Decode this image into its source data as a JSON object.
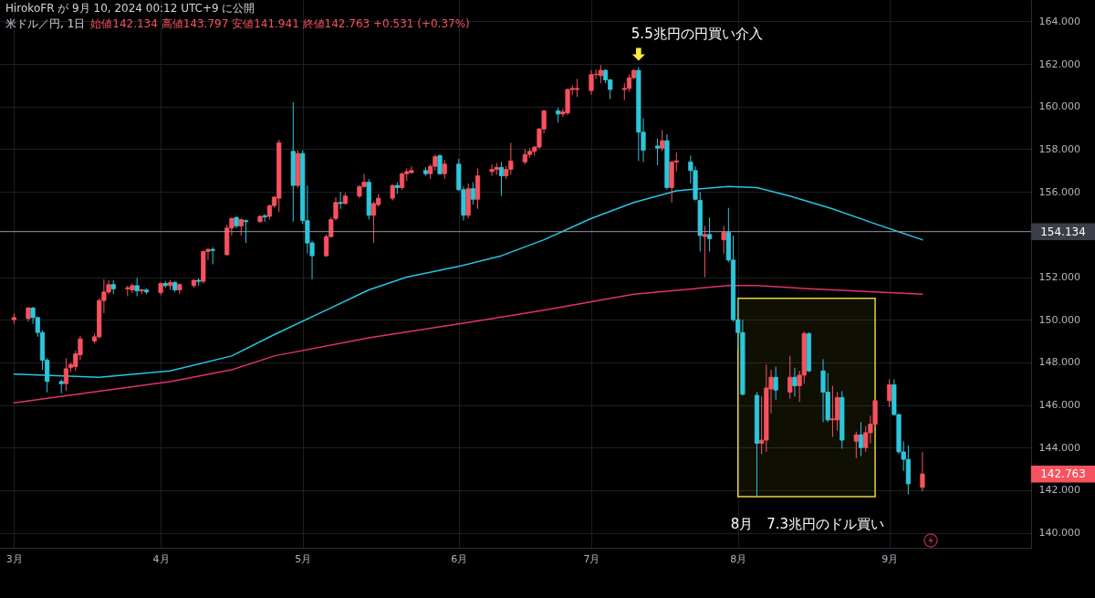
{
  "chart_data": {
    "type": "candlestick",
    "title": "米ドル／円, 1日",
    "subtitle": "始値142.134 高値143.797 安値141.941 終値142.763 +0.531 (+0.37%)",
    "annotations": [
      "HirokoFR が 9月 10, 2024 00:12 UTC+9 に公開",
      {
        "text": "5.5兆円の円買い介入",
        "x": "2024-07-11",
        "y": 161.85
      },
      "142.763"
    ],
    "xlim": [
      "2024-02-28",
      "2024-10-01"
    ],
    "x": [
      "2024-03-01",
      "2024-03-04",
      "2024-03-05",
      "2024-03-06",
      "2024-03-07",
      "2024-03-08",
      "2024-03-11",
      "2024-03-12",
      "2024-03-13",
      "2024-03-14",
      "2024-03-15",
      "2024-03-18",
      "2024-03-19",
      "2024-03-20",
      "2024-03-21",
      "2024-03-22",
      "2024-03-25",
      "2024-03-26",
      "2024-03-27",
      "2024-03-28",
      "2024-03-29",
      "2024-04-01",
      "2024-04-02",
      "2024-04-03",
      "2024-04-04",
      "2024-04-05",
      "2024-04-08",
      "2024-04-09",
      "2024-04-10",
      "2024-04-11",
      "2024-04-12",
      "2024-04-15",
      "2024-04-16",
      "2024-04-17",
      "2024-04-18",
      "2024-04-19",
      "2024-04-22",
      "2024-04-23",
      "2024-04-24",
      "2024-04-25",
      "2024-04-26",
      "2024-04-29",
      "2024-04-30",
      "2024-05-01",
      "2024-05-02",
      "2024-05-03",
      "2024-05-06",
      "2024-05-07",
      "2024-05-08",
      "2024-05-09",
      "2024-05-10",
      "2024-05-13",
      "2024-05-14",
      "2024-05-15",
      "2024-05-16",
      "2024-05-17",
      "2024-05-20",
      "2024-05-21",
      "2024-05-22",
      "2024-05-23",
      "2024-05-24",
      "2024-05-27",
      "2024-05-28",
      "2024-05-29",
      "2024-05-30",
      "2024-05-31",
      "2024-06-03",
      "2024-06-04",
      "2024-06-05",
      "2024-06-06",
      "2024-06-07",
      "2024-06-10",
      "2024-06-11",
      "2024-06-12",
      "2024-06-13",
      "2024-06-14",
      "2024-06-17",
      "2024-06-18",
      "2024-06-19",
      "2024-06-20",
      "2024-06-21",
      "2024-06-24",
      "2024-06-25",
      "2024-06-26",
      "2024-06-27",
      "2024-06-28",
      "2024-07-01",
      "2024-07-02",
      "2024-07-03",
      "2024-07-04",
      "2024-07-05",
      "2024-07-08",
      "2024-07-09",
      "2024-07-10",
      "2024-07-11",
      "2024-07-12",
      "2024-07-15",
      "2024-07-16",
      "2024-07-17",
      "2024-07-18",
      "2024-07-19",
      "2024-07-22",
      "2024-07-23",
      "2024-07-24",
      "2024-07-25",
      "2024-07-26",
      "2024-07-29",
      "2024-07-30",
      "2024-07-31",
      "2024-08-01",
      "2024-08-02",
      "2024-08-05",
      "2024-08-06",
      "2024-08-07",
      "2024-08-08",
      "2024-08-09",
      "2024-08-12",
      "2024-08-13",
      "2024-08-14",
      "2024-08-15",
      "2024-08-16",
      "2024-08-19",
      "2024-08-20",
      "2024-08-21",
      "2024-08-22",
      "2024-08-23",
      "2024-08-26",
      "2024-08-27",
      "2024-08-28",
      "2024-08-29",
      "2024-08-30",
      "2024-09-02",
      "2024-09-03",
      "2024-09-04",
      "2024-09-05",
      "2024-09-06",
      "2024-09-09"
    ],
    "ohlc": [
      [
        150.0,
        150.3,
        149.8,
        150.1
      ],
      [
        150.05,
        150.6,
        149.9,
        150.55
      ],
      [
        150.55,
        150.6,
        149.8,
        150.1
      ],
      [
        150.1,
        150.15,
        149.2,
        149.4
      ],
      [
        149.4,
        149.5,
        147.65,
        148.1
      ],
      [
        148.1,
        148.2,
        146.6,
        147.1
      ],
      [
        147.1,
        147.2,
        146.55,
        147.0
      ],
      [
        147.0,
        148.2,
        146.65,
        147.7
      ],
      [
        147.75,
        148.0,
        147.55,
        147.9
      ],
      [
        147.8,
        148.55,
        147.6,
        148.4
      ],
      [
        148.35,
        149.25,
        148.1,
        149.1
      ],
      [
        149.0,
        149.35,
        148.9,
        149.2
      ],
      [
        149.2,
        151.0,
        149.1,
        150.9
      ],
      [
        150.9,
        151.9,
        150.3,
        151.3
      ],
      [
        151.3,
        151.85,
        151.2,
        151.65
      ],
      [
        151.65,
        151.85,
        151.2,
        151.45
      ],
      [
        151.45,
        151.6,
        151.1,
        151.5
      ],
      [
        151.4,
        151.7,
        151.25,
        151.6
      ],
      [
        151.6,
        151.97,
        151.1,
        151.35
      ],
      [
        151.35,
        151.45,
        151.2,
        151.4
      ],
      [
        151.4,
        151.45,
        151.2,
        151.3
      ],
      [
        151.27,
        151.75,
        151.15,
        151.7
      ],
      [
        151.7,
        151.8,
        151.5,
        151.6
      ],
      [
        151.6,
        151.85,
        151.4,
        151.75
      ],
      [
        151.75,
        151.8,
        151.3,
        151.4
      ],
      [
        151.4,
        151.7,
        151.2,
        151.65
      ],
      [
        151.6,
        151.9,
        151.5,
        151.85
      ],
      [
        151.85,
        151.95,
        151.6,
        151.8
      ],
      [
        151.8,
        153.25,
        151.7,
        153.2
      ],
      [
        153.2,
        153.35,
        152.8,
        153.3
      ],
      [
        153.3,
        153.4,
        152.6,
        153.25
      ],
      [
        153.05,
        154.45,
        153.0,
        154.3
      ],
      [
        154.3,
        154.8,
        153.95,
        154.75
      ],
      [
        154.8,
        154.85,
        154.3,
        154.4
      ],
      [
        154.4,
        154.75,
        153.95,
        154.7
      ],
      [
        154.65,
        154.7,
        153.6,
        154.6
      ],
      [
        154.6,
        154.9,
        154.55,
        154.85
      ],
      [
        154.88,
        154.95,
        154.6,
        154.82
      ],
      [
        154.85,
        155.4,
        154.7,
        155.35
      ],
      [
        155.35,
        155.8,
        155.25,
        155.75
      ],
      [
        155.7,
        158.45,
        155.05,
        158.3
      ],
      [
        157.9,
        160.2,
        154.6,
        156.3
      ],
      [
        156.3,
        157.95,
        156.2,
        157.8
      ],
      [
        157.8,
        157.95,
        154.5,
        154.65
      ],
      [
        154.65,
        156.3,
        153.1,
        153.6
      ],
      [
        153.6,
        153.7,
        151.9,
        153.0
      ],
      [
        153.0,
        154.0,
        152.95,
        153.9
      ],
      [
        153.9,
        154.8,
        153.85,
        154.7
      ],
      [
        154.75,
        155.75,
        154.65,
        155.5
      ],
      [
        155.5,
        156.0,
        155.2,
        155.45
      ],
      [
        155.45,
        155.95,
        155.4,
        155.8
      ],
      [
        155.8,
        156.3,
        155.7,
        156.25
      ],
      [
        156.25,
        156.85,
        156.2,
        156.45
      ],
      [
        156.45,
        156.6,
        154.7,
        154.9
      ],
      [
        154.9,
        155.55,
        153.6,
        155.45
      ],
      [
        155.4,
        155.9,
        155.3,
        155.7
      ],
      [
        155.7,
        156.35,
        155.6,
        156.3
      ],
      [
        156.3,
        156.45,
        155.9,
        156.2
      ],
      [
        156.2,
        156.9,
        156.1,
        156.85
      ],
      [
        156.85,
        157.1,
        156.5,
        156.95
      ],
      [
        156.9,
        157.2,
        156.85,
        157.0
      ],
      [
        157.0,
        157.15,
        156.75,
        156.85
      ],
      [
        156.85,
        157.3,
        156.6,
        157.2
      ],
      [
        157.2,
        157.75,
        157.0,
        157.65
      ],
      [
        157.7,
        157.75,
        156.8,
        156.85
      ],
      [
        156.85,
        157.5,
        156.6,
        157.3
      ],
      [
        157.3,
        157.55,
        156.05,
        156.1
      ],
      [
        156.1,
        156.25,
        154.65,
        154.9
      ],
      [
        154.9,
        156.4,
        154.75,
        156.15
      ],
      [
        156.15,
        156.45,
        155.4,
        155.65
      ],
      [
        155.65,
        157.1,
        155.2,
        156.75
      ],
      [
        156.95,
        157.3,
        156.75,
        157.05
      ],
      [
        157.05,
        157.35,
        156.8,
        157.15
      ],
      [
        157.15,
        157.4,
        155.8,
        156.75
      ],
      [
        156.75,
        157.2,
        156.6,
        157.05
      ],
      [
        157.05,
        158.3,
        156.8,
        157.45
      ],
      [
        157.4,
        158.0,
        157.3,
        157.75
      ],
      [
        157.75,
        158.05,
        157.6,
        157.9
      ],
      [
        157.9,
        158.15,
        157.7,
        158.1
      ],
      [
        158.1,
        159.0,
        158.0,
        158.95
      ],
      [
        158.95,
        159.85,
        158.75,
        159.8
      ],
      [
        159.8,
        159.95,
        159.25,
        159.65
      ],
      [
        159.65,
        159.9,
        159.5,
        159.75
      ],
      [
        159.7,
        160.85,
        159.6,
        160.8
      ],
      [
        160.8,
        161.0,
        160.55,
        160.85
      ],
      [
        160.8,
        161.3,
        160.45,
        160.85
      ],
      [
        160.75,
        161.7,
        160.55,
        161.5
      ],
      [
        161.5,
        161.75,
        161.3,
        161.52
      ],
      [
        161.45,
        161.95,
        161.1,
        161.7
      ],
      [
        161.7,
        161.75,
        161.1,
        161.25
      ],
      [
        161.25,
        161.3,
        160.35,
        160.8
      ],
      [
        160.8,
        161.1,
        160.3,
        160.85
      ],
      [
        160.85,
        161.5,
        160.7,
        161.35
      ],
      [
        161.35,
        161.75,
        161.3,
        161.7
      ],
      [
        161.7,
        161.85,
        157.45,
        158.8
      ],
      [
        158.8,
        159.45,
        157.4,
        157.95
      ],
      [
        158.15,
        158.5,
        157.25,
        158.05
      ],
      [
        158.05,
        158.9,
        157.9,
        158.4
      ],
      [
        158.4,
        158.7,
        156.1,
        156.2
      ],
      [
        156.2,
        157.45,
        155.5,
        157.4
      ],
      [
        157.4,
        157.85,
        156.95,
        157.45
      ],
      [
        157.4,
        157.7,
        156.4,
        157.0
      ],
      [
        157.0,
        157.2,
        155.6,
        155.65
      ],
      [
        155.6,
        156.0,
        153.2,
        153.95
      ],
      [
        153.9,
        154.4,
        152.0,
        154.0
      ],
      [
        154.0,
        154.8,
        153.2,
        153.8
      ],
      [
        153.75,
        154.4,
        153.1,
        154.1
      ],
      [
        154.1,
        155.25,
        152.7,
        152.8
      ],
      [
        152.8,
        153.95,
        149.9,
        150.0
      ],
      [
        150.0,
        151.0,
        148.6,
        149.4
      ],
      [
        149.4,
        150.0,
        146.45,
        146.5
      ],
      [
        146.45,
        146.6,
        141.7,
        144.2
      ],
      [
        144.2,
        146.4,
        143.7,
        144.35
      ],
      [
        144.35,
        147.9,
        143.8,
        146.8
      ],
      [
        146.75,
        147.65,
        145.6,
        147.3
      ],
      [
        147.3,
        147.8,
        146.25,
        146.7
      ],
      [
        146.6,
        148.3,
        146.3,
        147.3
      ],
      [
        147.3,
        147.75,
        146.4,
        146.9
      ],
      [
        146.9,
        147.6,
        146.15,
        147.4
      ],
      [
        147.4,
        149.45,
        147.0,
        149.35
      ],
      [
        149.35,
        149.4,
        147.55,
        147.6
      ],
      [
        147.6,
        148.15,
        145.2,
        146.6
      ],
      [
        146.6,
        147.5,
        145.2,
        145.3
      ],
      [
        145.3,
        146.9,
        144.5,
        145.35
      ],
      [
        145.3,
        146.6,
        144.8,
        146.35
      ],
      [
        146.35,
        146.65,
        143.95,
        144.35
      ],
      [
        144.3,
        144.75,
        143.5,
        144.6
      ],
      [
        144.6,
        145.2,
        143.6,
        144.0
      ],
      [
        144.0,
        145.0,
        143.8,
        144.7
      ],
      [
        144.7,
        145.5,
        144.2,
        145.1
      ],
      [
        145.1,
        146.25,
        145.0,
        146.2
      ],
      [
        146.2,
        147.2,
        145.9,
        146.95
      ],
      [
        146.95,
        147.2,
        145.5,
        145.55
      ],
      [
        145.55,
        145.6,
        143.7,
        143.8
      ],
      [
        143.8,
        144.3,
        142.9,
        143.45
      ],
      [
        143.45,
        144.1,
        141.8,
        142.3
      ],
      [
        142.134,
        143.797,
        141.941,
        142.763
      ]
    ],
    "colors": [
      "#f7525f",
      "#f7525f",
      "#2ec6da",
      "#2ec6da",
      "#2ec6da",
      "#2ec6da",
      "#2ec6da",
      "#f7525f",
      "#f7525f",
      "#f7525f",
      "#f7525f",
      "#f7525f",
      "#f7525f",
      "#f7525f",
      "#f7525f",
      "#2ec6da",
      "#f7525f",
      "#f7525f",
      "#2ec6da",
      "#f7525f",
      "#2ec6da",
      "#f7525f",
      "#2ec6da",
      "#f7525f",
      "#2ec6da",
      "#f7525f",
      "#f7525f",
      "#2ec6da",
      "#f7525f",
      "#f7525f",
      "#2ec6da",
      "#f7525f",
      "#f7525f",
      "#2ec6da",
      "#f7525f",
      "#2ec6da",
      "#f7525f",
      "#2ec6da",
      "#f7525f",
      "#f7525f",
      "#f7525f",
      "#2ec6da",
      "#f7525f",
      "#2ec6da",
      "#2ec6da",
      "#2ec6da",
      "#f7525f",
      "#f7525f",
      "#f7525f",
      "#2ec6da",
      "#f7525f",
      "#f7525f",
      "#f7525f",
      "#2ec6da",
      "#f7525f",
      "#f7525f",
      "#f7525f",
      "#2ec6da",
      "#f7525f",
      "#f7525f",
      "#f7525f",
      "#2ec6da",
      "#f7525f",
      "#f7525f",
      "#2ec6da",
      "#f7525f",
      "#2ec6da",
      "#2ec6da",
      "#f7525f",
      "#2ec6da",
      "#f7525f",
      "#f7525f",
      "#f7525f",
      "#2ec6da",
      "#f7525f",
      "#f7525f",
      "#f7525f",
      "#f7525f",
      "#f7525f",
      "#f7525f",
      "#f7525f",
      "#2ec6da",
      "#f7525f",
      "#f7525f",
      "#f7525f",
      "#f7525f",
      "#f7525f",
      "#f7525f",
      "#f7525f",
      "#2ec6da",
      "#2ec6da",
      "#f7525f",
      "#f7525f",
      "#f7525f",
      "#2ec6da",
      "#2ec6da",
      "#2ec6da",
      "#f7525f",
      "#2ec6da",
      "#f7525f",
      "#f7525f",
      "#2ec6da",
      "#2ec6da",
      "#2ec6da",
      "#f7525f",
      "#2ec6da",
      "#f7525f",
      "#2ec6da",
      "#2ec6da",
      "#2ec6da",
      "#2ec6da",
      "#2ec6da",
      "#f7525f",
      "#f7525f",
      "#f7525f",
      "#2ec6da",
      "#f7525f",
      "#2ec6da",
      "#f7525f",
      "#f7525f",
      "#2ec6da",
      "#2ec6da",
      "#2ec6da",
      "#f7525f",
      "#f7525f",
      "#2ec6da",
      "#f7525f",
      "#2ec6da",
      "#f7525f",
      "#f7525f",
      "#f7525f",
      "#f7525f",
      "#2ec6da",
      "#2ec6da",
      "#2ec6da",
      "#2ec6da",
      "#f7525f"
    ],
    "series": [
      {
        "type": "line",
        "color": "#26c6e4",
        "x": [
          "2024-03-01",
          "2024-03-19",
          "2024-04-03",
          "2024-04-16",
          "2024-04-25",
          "2024-05-06",
          "2024-05-15",
          "2024-05-23",
          "2024-06-03",
          "2024-06-12",
          "2024-06-21",
          "2024-07-01",
          "2024-07-10",
          "2024-07-19",
          "2024-07-30",
          "2024-08-05",
          "2024-08-12",
          "2024-08-21",
          "2024-08-30",
          "2024-09-09"
        ],
        "values": [
          147.45,
          147.3,
          147.6,
          148.3,
          149.3,
          150.45,
          151.4,
          152.0,
          152.5,
          153.0,
          153.75,
          154.75,
          155.5,
          156.05,
          156.25,
          156.2,
          155.8,
          155.2,
          154.5,
          153.75
        ]
      },
      {
        "type": "line",
        "color": "#e0336a",
        "x": [
          "2024-03-01",
          "2024-03-19",
          "2024-04-03",
          "2024-04-16",
          "2024-04-25",
          "2024-05-15",
          "2024-06-03",
          "2024-06-21",
          "2024-07-10",
          "2024-07-30",
          "2024-08-05",
          "2024-08-16",
          "2024-09-09"
        ],
        "values": [
          146.1,
          146.65,
          147.1,
          147.65,
          148.3,
          149.15,
          149.8,
          150.45,
          151.2,
          151.6,
          151.6,
          151.45,
          151.2
        ]
      }
    ],
    "ylim": [
      139.3,
      165.0
    ],
    "yticks": [
      {
        "value": 140,
        "label": "140.000"
      },
      {
        "value": 142,
        "label": "142.000"
      },
      {
        "value": 144,
        "label": "144.000"
      },
      {
        "value": 146,
        "label": "146.000"
      },
      {
        "value": 148,
        "label": "148.000"
      },
      {
        "value": 150,
        "label": "150.000"
      },
      {
        "value": 152,
        "label": "152.000"
      },
      {
        "value": 156,
        "label": "156.000"
      },
      {
        "value": 158,
        "label": "158.000"
      },
      {
        "value": 160,
        "label": "160.000"
      },
      {
        "value": 162,
        "label": "162.000"
      },
      {
        "value": 164,
        "label": "164.000"
      }
    ],
    "xticks": [
      {
        "value": "2024-03-01",
        "label": "3月"
      },
      {
        "value": "2024-04-01",
        "label": "4月"
      },
      {
        "value": "2024-05-01",
        "label": "5月"
      },
      {
        "value": "2024-06-03",
        "label": "6月"
      },
      {
        "value": "2024-07-01",
        "label": "7月"
      },
      {
        "value": "2024-08-01",
        "label": "8月"
      },
      {
        "value": "2024-09-02",
        "label": "9月"
      }
    ],
    "ref_lines": [
      {
        "axis": "y",
        "value": 154.134,
        "label": "154.134",
        "color": "#9598a1"
      }
    ],
    "bands": [
      {
        "axis": "x",
        "from": "2024-08-01",
        "to": "2024-08-30",
        "label": "8月　7.3兆円のドル買い",
        "color": "#e6d33c"
      }
    ],
    "grid": true
  }
}
